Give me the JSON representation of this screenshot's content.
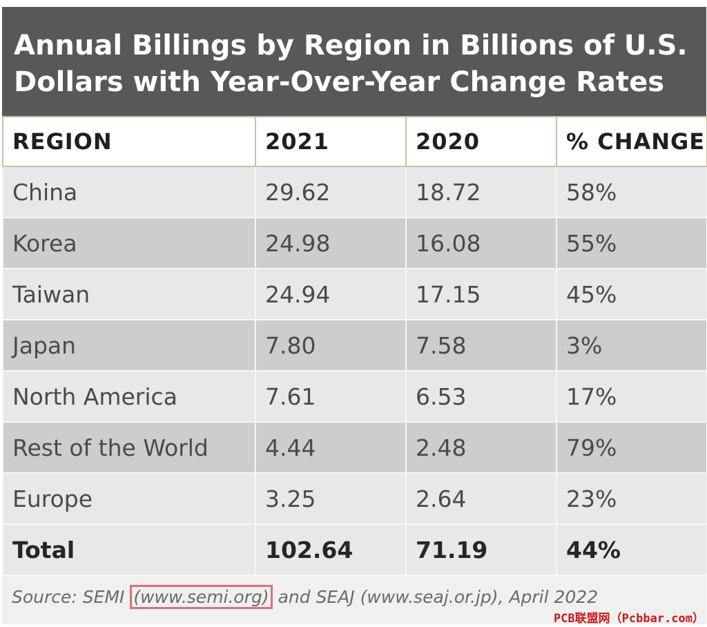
{
  "chart_data": {
    "type": "table",
    "title": "Annual Billings by Region in Billions of U.S. Dollars with Year-Over-Year Change Rates",
    "columns": [
      "REGION",
      "2021",
      "2020",
      "% CHANGE"
    ],
    "rows": [
      [
        "China",
        "29.62",
        "18.72",
        "58%"
      ],
      [
        "Korea",
        "24.98",
        "16.08",
        "55%"
      ],
      [
        "Taiwan",
        "24.94",
        "17.15",
        "45%"
      ],
      [
        "Japan",
        "7.80",
        "7.58",
        "3%"
      ],
      [
        "North America",
        "7.61",
        "6.53",
        "17%"
      ],
      [
        "Rest of the World",
        "4.44",
        "2.48",
        "79%"
      ],
      [
        "Europe",
        "3.25",
        "2.64",
        "23%"
      ]
    ],
    "total": [
      "Total",
      "102.64",
      "71.19",
      "44%"
    ],
    "source": {
      "prefix": "Source: SEMI ",
      "highlighted": "(www.semi.org)",
      "suffix": " and SEAJ (www.seaj.or.jp), April 2022"
    },
    "colors": {
      "title_background": "#585858",
      "header_background": "#ffffff",
      "row_light": "#e8e8e8",
      "row_dark": "#cdcdcd",
      "highlight_box": "#e07070",
      "watermark": "#d01818"
    }
  },
  "watermark": "PCB联盟网（Pcbbar.com）"
}
